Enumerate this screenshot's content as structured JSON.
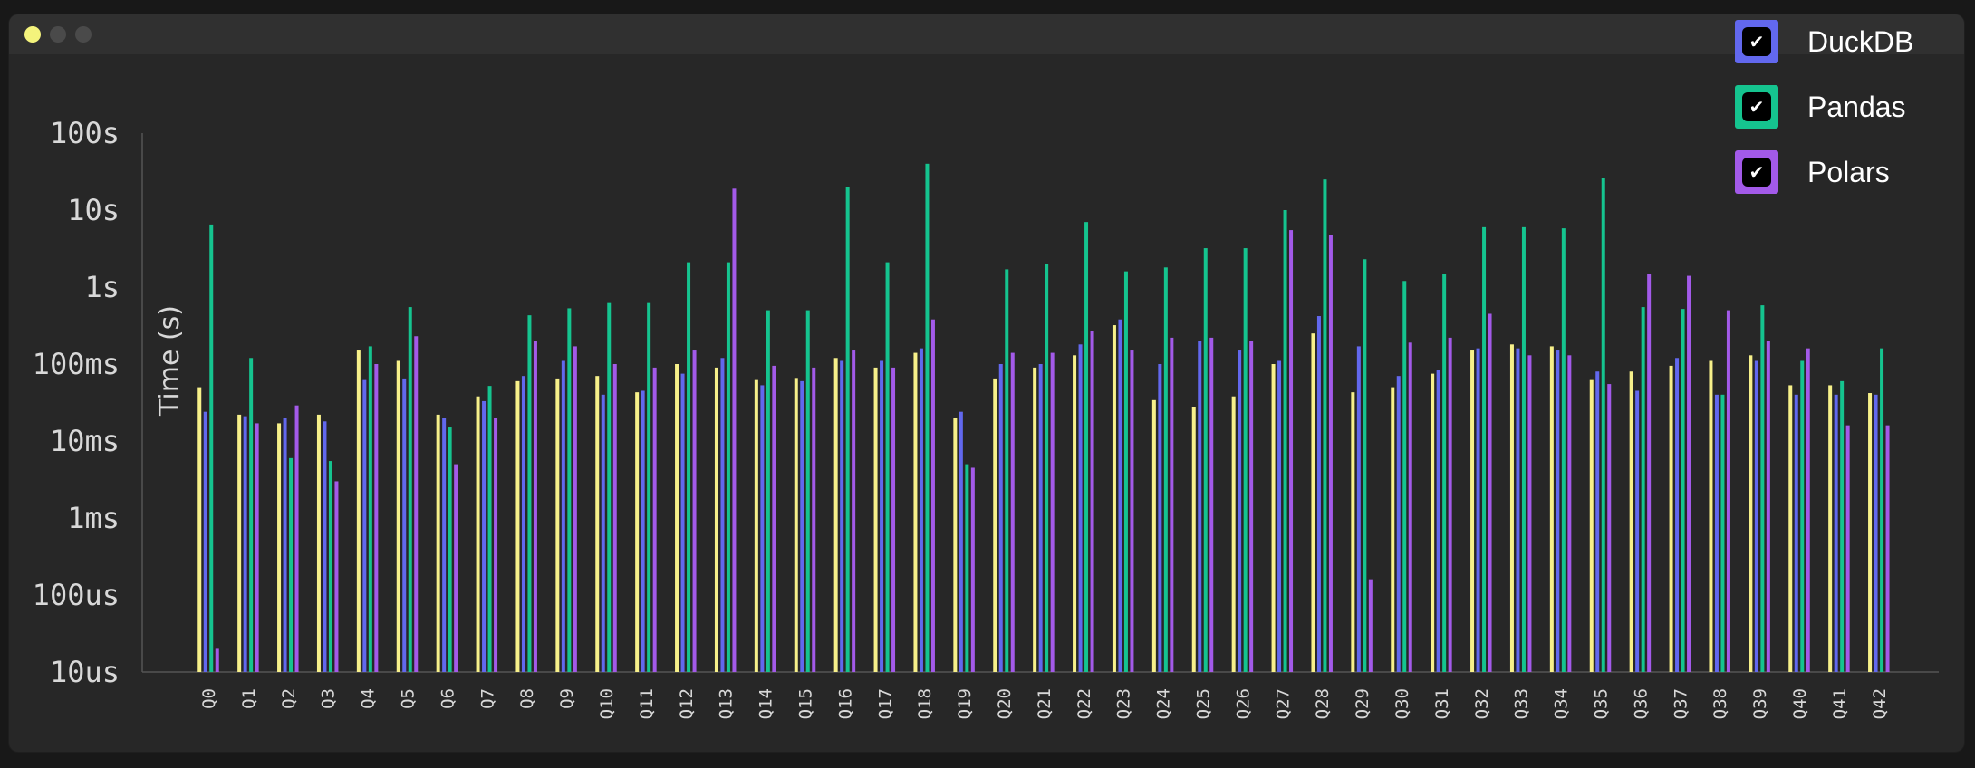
{
  "window": {
    "controls": [
      "close",
      "minimize",
      "maximize"
    ]
  },
  "legend": [
    {
      "name": "DuckDB",
      "color": "#6268ee",
      "checked": true,
      "icon": "check-icon"
    },
    {
      "name": "Pandas",
      "color": "#15c48f",
      "checked": true,
      "icon": "check-icon"
    },
    {
      "name": "Polars",
      "color": "#a35ae9",
      "checked": true,
      "icon": "check-icon"
    }
  ],
  "chart_data": {
    "type": "bar",
    "scale": "log",
    "ylabel": "Time (s)",
    "xlabel": "",
    "ylim": [
      1e-05,
      100
    ],
    "yticks": [
      {
        "value": 100,
        "label": "100s"
      },
      {
        "value": 10,
        "label": "10s"
      },
      {
        "value": 1,
        "label": "1s"
      },
      {
        "value": 0.1,
        "label": "100ms"
      },
      {
        "value": 0.01,
        "label": "10ms"
      },
      {
        "value": 0.001,
        "label": "1ms"
      },
      {
        "value": 0.0001,
        "label": "100us"
      },
      {
        "value": 1e-05,
        "label": "10us"
      }
    ],
    "categories": [
      "Q0",
      "Q1",
      "Q2",
      "Q3",
      "Q4",
      "Q5",
      "Q6",
      "Q7",
      "Q8",
      "Q9",
      "Q10",
      "Q11",
      "Q12",
      "Q13",
      "Q14",
      "Q15",
      "Q16",
      "Q17",
      "Q18",
      "Q19",
      "Q20",
      "Q21",
      "Q22",
      "Q23",
      "Q24",
      "Q25",
      "Q26",
      "Q27",
      "Q28",
      "Q29",
      "Q30",
      "Q31",
      "Q32",
      "Q33",
      "Q34",
      "Q35",
      "Q36",
      "Q37",
      "Q38",
      "Q39",
      "Q40",
      "Q41",
      "Q42"
    ],
    "series": [
      {
        "color": "#f7f08a",
        "values": [
          0.05,
          0.022,
          0.017,
          0.022,
          0.15,
          0.11,
          0.022,
          0.038,
          0.06,
          0.065,
          0.07,
          0.043,
          0.1,
          0.09,
          0.062,
          0.066,
          0.12,
          0.09,
          0.14,
          0.02,
          0.065,
          0.09,
          0.13,
          0.32,
          0.034,
          0.028,
          0.038,
          0.1,
          0.25,
          0.043,
          0.05,
          0.075,
          0.15,
          0.18,
          0.17,
          0.062,
          0.08,
          0.095,
          0.11,
          0.13,
          0.053,
          0.053,
          0.042
        ]
      },
      {
        "name": "DuckDB",
        "color": "#6268ee",
        "values": [
          0.024,
          0.021,
          0.02,
          0.018,
          0.062,
          0.065,
          0.02,
          0.033,
          0.07,
          0.11,
          0.04,
          0.045,
          0.075,
          0.12,
          0.053,
          0.06,
          0.11,
          0.11,
          0.16,
          0.024,
          0.1,
          0.1,
          0.18,
          0.38,
          0.1,
          0.2,
          0.15,
          0.11,
          0.42,
          0.17,
          0.07,
          0.085,
          0.16,
          0.16,
          0.15,
          0.08,
          0.045,
          0.12,
          0.04,
          0.11,
          0.04,
          0.04,
          0.04
        ]
      },
      {
        "name": "Pandas",
        "color": "#15c48f",
        "values": [
          6.5,
          0.12,
          0.006,
          0.0055,
          0.17,
          0.55,
          0.015,
          0.052,
          0.43,
          0.53,
          0.62,
          0.62,
          2.1,
          2.1,
          0.5,
          0.5,
          20,
          2.1,
          40,
          0.005,
          1.7,
          2.0,
          7,
          1.6,
          1.8,
          3.2,
          3.2,
          10,
          25,
          2.3,
          1.2,
          1.5,
          6,
          6,
          5.8,
          26,
          0.55,
          0.52,
          0.04,
          0.58,
          0.11,
          0.06,
          0.16
        ]
      },
      {
        "name": "Polars",
        "color": "#a35ae9",
        "values": [
          2e-05,
          0.017,
          0.029,
          0.003,
          0.1,
          0.23,
          0.005,
          0.02,
          0.2,
          0.17,
          0.1,
          0.09,
          0.15,
          19,
          0.095,
          0.09,
          0.15,
          0.09,
          0.38,
          0.0045,
          0.14,
          0.14,
          0.27,
          0.15,
          0.22,
          0.22,
          0.2,
          5.5,
          4.8,
          0.00016,
          0.19,
          0.22,
          0.45,
          0.13,
          0.13,
          0.055,
          1.5,
          1.4,
          0.5,
          0.2,
          0.16,
          0.016,
          0.016
        ]
      }
    ]
  }
}
